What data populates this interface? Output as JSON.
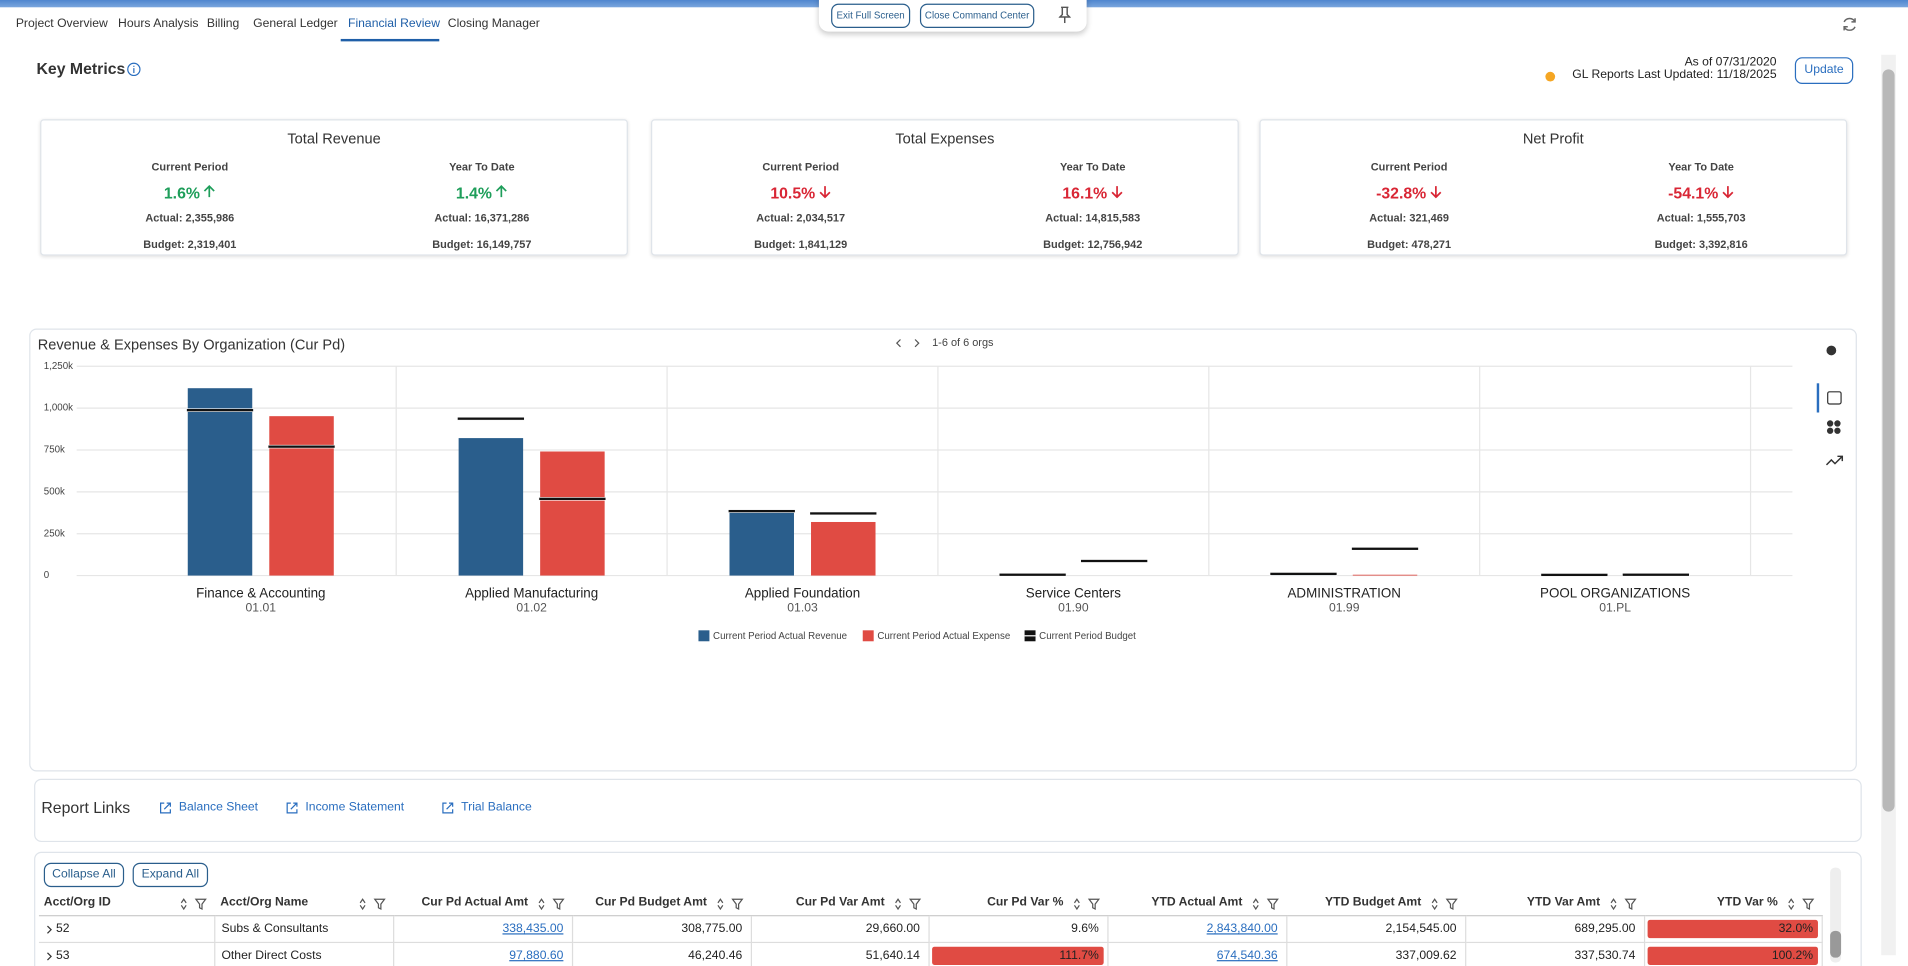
{
  "tabs": [
    "Project Overview",
    "Hours Analysis",
    "Billing",
    "General Ledger",
    "Financial Review",
    "Closing Manager"
  ],
  "toolbar": {
    "exit": "Exit Full Screen",
    "close": "Close Command Center"
  },
  "key_metrics": {
    "title": "Key Metrics",
    "as_of": "As of 07/31/2020",
    "gl_updated": "GL Reports Last Updated: 11/18/2025",
    "update": "Update",
    "cards": [
      {
        "title": "Total Revenue",
        "periods": [
          {
            "label": "Current Period",
            "change": "1.6%",
            "trend": "up",
            "color": "#1e9e5a",
            "actual": "Actual: 2,355,986",
            "budget": "Budget: 2,319,401"
          },
          {
            "label": "Year To Date",
            "change": "1.4%",
            "trend": "up",
            "color": "#1e9e5a",
            "actual": "Actual: 16,371,286",
            "budget": "Budget: 16,149,757"
          }
        ]
      },
      {
        "title": "Total Expenses",
        "periods": [
          {
            "label": "Current Period",
            "change": "10.5%",
            "trend": "down",
            "color": "#d92635",
            "actual": "Actual: 2,034,517",
            "budget": "Budget: 1,841,129"
          },
          {
            "label": "Year To Date",
            "change": "16.1%",
            "trend": "down",
            "color": "#d92635",
            "actual": "Actual: 14,815,583",
            "budget": "Budget: 12,756,942"
          }
        ]
      },
      {
        "title": "Net Profit",
        "periods": [
          {
            "label": "Current Period",
            "change": "-32.8%",
            "trend": "down",
            "color": "#d92635",
            "actual": "Actual: 321,469",
            "budget": "Budget: 478,271"
          },
          {
            "label": "Year To Date",
            "change": "-54.1%",
            "trend": "down",
            "color": "#d92635",
            "actual": "Actual: 1,555,703",
            "budget": "Budget: 3,392,816"
          }
        ]
      }
    ]
  },
  "chart_data": {
    "type": "bar",
    "title": "Revenue & Expenses By Organization (Cur Pd)",
    "pager": "1-6 of 6 orgs",
    "categories": [
      "Finance & Accounting",
      "Applied Manufacturing",
      "Applied Foundation",
      "Service Centers",
      "ADMINISTRATION",
      "POOL ORGANIZATIONS"
    ],
    "category_codes": [
      "01.01",
      "01.02",
      "01.03",
      "01.90",
      "01.99",
      "01.PL"
    ],
    "series": [
      {
        "name": "Current Period Actual Revenue",
        "color": "#2a5e8c",
        "values": [
          1119000,
          821000,
          385000,
          6000,
          4000,
          3000
        ],
        "budget": [
          988000,
          937000,
          385000,
          5000,
          10000,
          4000
        ]
      },
      {
        "name": "Current Period Actual Expense",
        "color": "#e04b43",
        "values": [
          952000,
          741000,
          320000,
          0,
          5000,
          0
        ],
        "budget": [
          770000,
          458000,
          371000,
          87000,
          160000,
          5000
        ]
      }
    ],
    "budget_name": "Current Period Budget",
    "budget_color": "#111111",
    "ylim": [
      0,
      1250000
    ],
    "yticks": [
      0,
      {
        "value": 250000,
        "label": "250k"
      },
      {
        "value": 500000,
        "label": "500k"
      },
      {
        "value": 750000,
        "label": "750k"
      },
      {
        "value": 1000000,
        "label": "1,000k"
      },
      {
        "value": 1250000,
        "label": "1,250k"
      }
    ],
    "grid": true
  },
  "report_links": {
    "title": "Report Links",
    "links": [
      "Balance Sheet",
      "Income Statement",
      "Trial Balance"
    ]
  },
  "table": {
    "buttons": [
      "Collapse All",
      "Expand All"
    ],
    "columns": [
      "Acct/Org ID",
      "Acct/Org Name",
      "Cur Pd Actual Amt",
      "Cur Pd Budget Amt",
      "Cur Pd Var Amt",
      "Cur Pd Var %",
      "YTD Actual Amt",
      "YTD Budget Amt",
      "YTD Var Amt",
      "YTD Var %"
    ],
    "link_columns": [
      2,
      6
    ],
    "flag_color": "#e04b43",
    "rows": [
      {
        "cells": [
          "52",
          "Subs & Consultants",
          "338,435.00",
          "308,775.00",
          "29,660.00",
          "9.6%",
          "2,843,840.00",
          "2,154,545.00",
          "689,295.00",
          "32.0%"
        ],
        "flagged": [
          9
        ]
      },
      {
        "cells": [
          "53",
          "Other Direct Costs",
          "97,880.60",
          "46,240.46",
          "51,640.14",
          "111.7%",
          "674,540.36",
          "337,009.62",
          "337,530.74",
          "100.2%"
        ],
        "flagged": [
          5,
          9
        ]
      }
    ]
  }
}
